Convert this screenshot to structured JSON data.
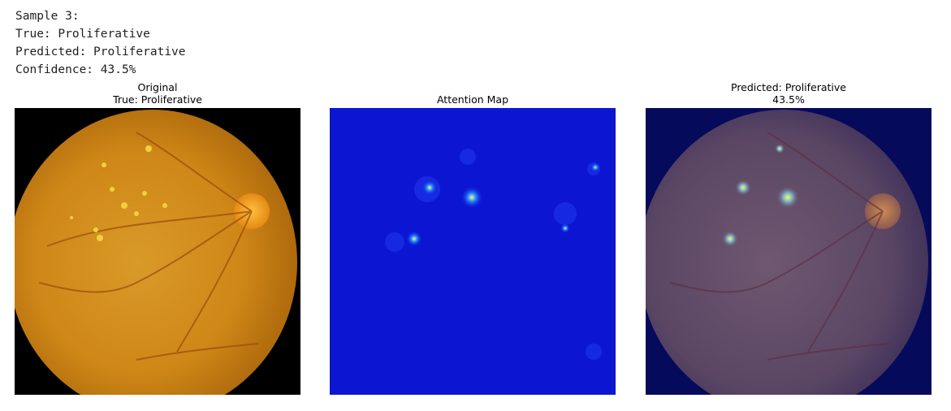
{
  "log": {
    "sample": "Sample 3:",
    "true_line": "True: Proliferative",
    "pred_line": "Predicted: Proliferative",
    "conf_line": "Confidence: 43.5%"
  },
  "panels": {
    "original": {
      "title1": "Original",
      "title2": "True: Proliferative"
    },
    "attention": {
      "title1": "Attention Map"
    },
    "overlay": {
      "title1": "Predicted: Proliferative",
      "title2": "43.5%"
    }
  },
  "colors": {
    "fundus_orange": "#d28a18",
    "attention_blue": "#0a14d8",
    "overlay_purple": "#5a4664"
  }
}
